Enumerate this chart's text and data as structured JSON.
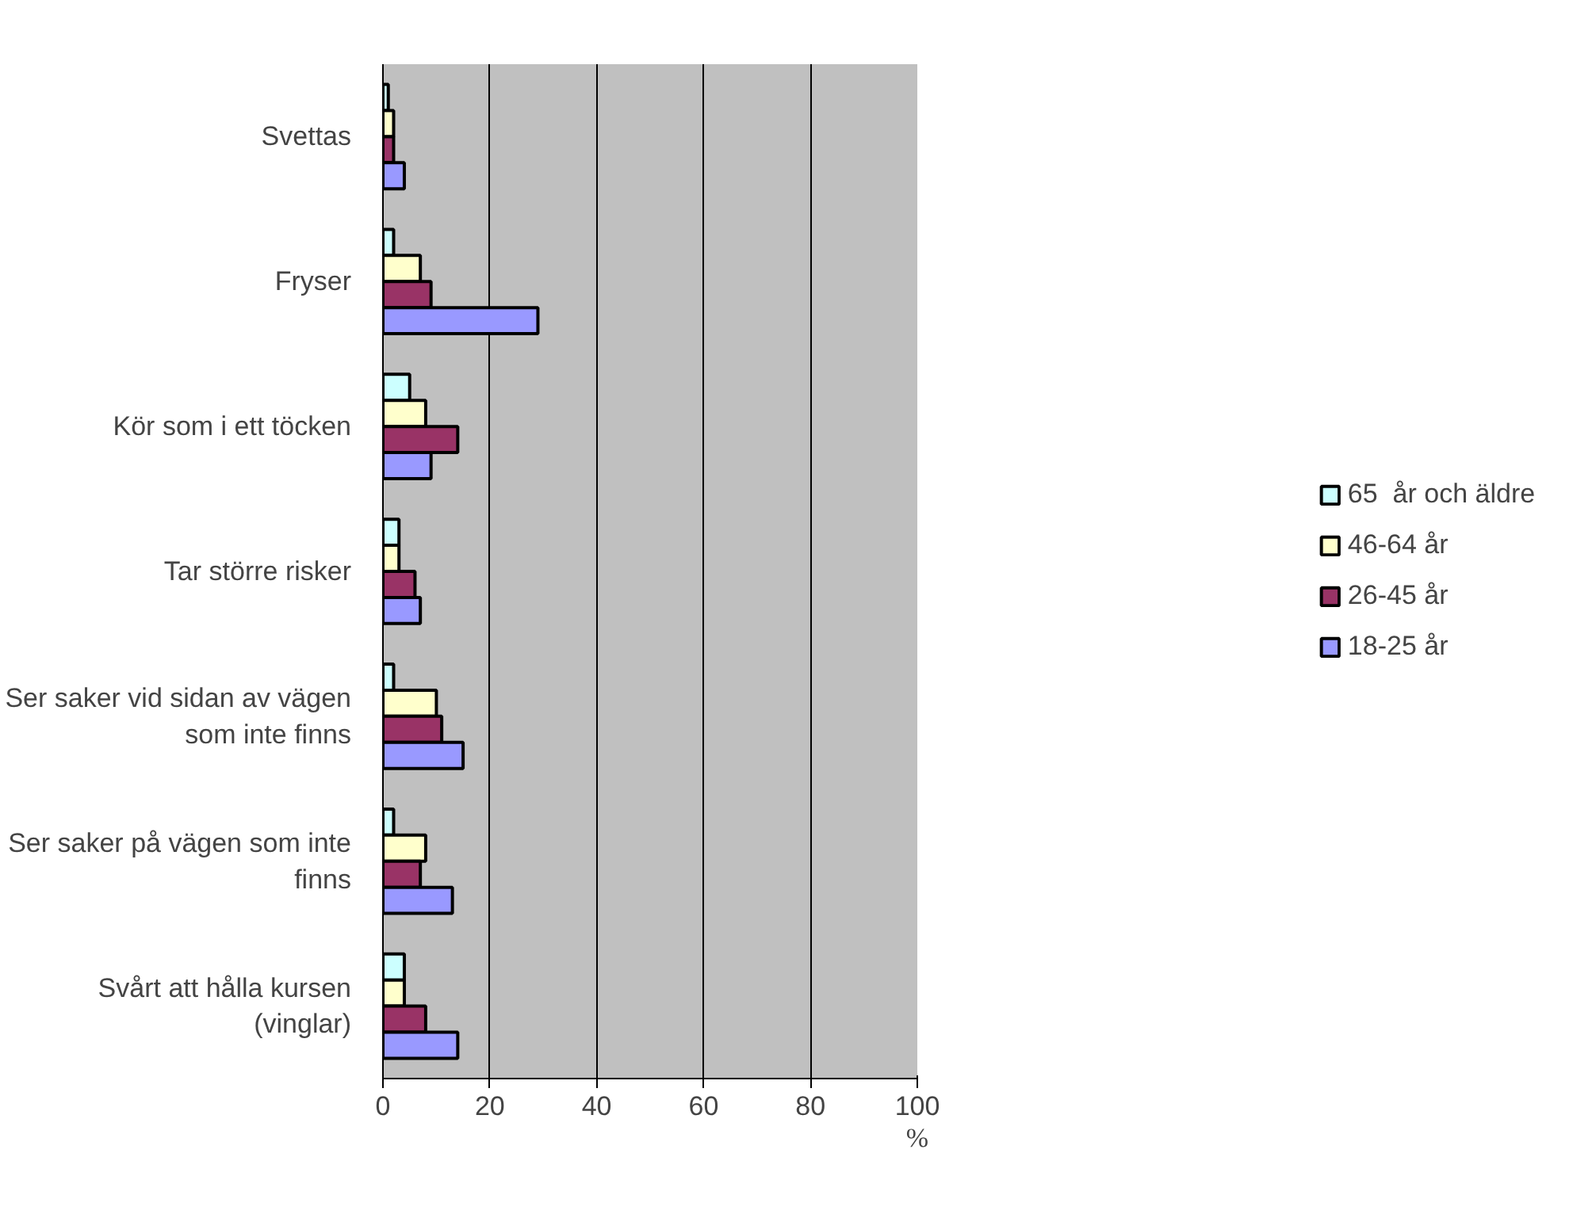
{
  "chart_data": {
    "type": "bar",
    "orientation": "horizontal",
    "xlabel": "%",
    "categories": [
      "Svettas",
      "Fryser",
      "Kör som i ett töcken",
      "Tar större risker",
      "Ser saker vid sidan av vägen som inte finns",
      "Ser saker på vägen som inte finns",
      "Svårt att hålla kursen (vinglar)"
    ],
    "series": [
      {
        "name": "65  år och äldre",
        "color": "#ccffff",
        "values": [
          1,
          2,
          5,
          3,
          2,
          2,
          4
        ]
      },
      {
        "name": "46-64 år",
        "color": "#ffffcc",
        "values": [
          2,
          7,
          8,
          3,
          10,
          8,
          4
        ]
      },
      {
        "name": "26-45 år",
        "color": "#993366",
        "values": [
          2,
          9,
          14,
          6,
          11,
          7,
          8
        ]
      },
      {
        "name": "18-25 år",
        "color": "#9999ff",
        "values": [
          4,
          29,
          9,
          7,
          15,
          13,
          14
        ]
      }
    ],
    "xlim": [
      0,
      100
    ],
    "xticks": [
      0,
      20,
      40,
      60,
      80,
      100
    ],
    "grid": "x",
    "legend": "right"
  }
}
